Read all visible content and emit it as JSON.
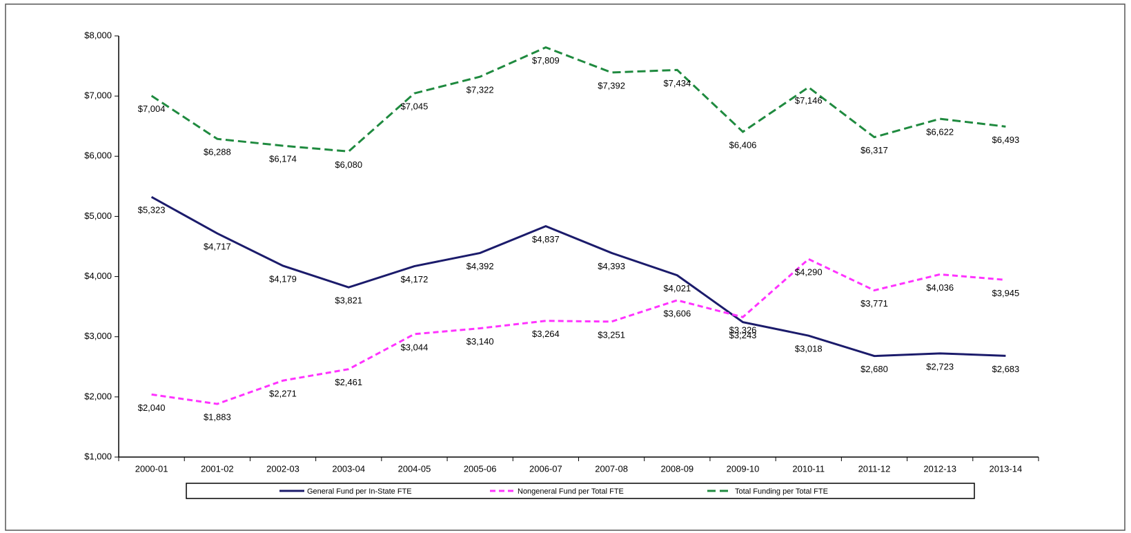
{
  "chart_data": {
    "type": "line",
    "categories": [
      "2000-01",
      "2001-02",
      "2002-03",
      "2003-04",
      "2004-05",
      "2005-06",
      "2006-07",
      "2007-08",
      "2008-09",
      "2009-10",
      "2010-11",
      "2011-12",
      "2012-13",
      "2013-14"
    ],
    "ylim": [
      1000,
      8000
    ],
    "yticks": [
      {
        "value": 1000,
        "label": "$1,000"
      },
      {
        "value": 2000,
        "label": "$2,000"
      },
      {
        "value": 3000,
        "label": "$3,000"
      },
      {
        "value": 4000,
        "label": "$4,000"
      },
      {
        "value": 5000,
        "label": "$5,000"
      },
      {
        "value": 6000,
        "label": "$6,000"
      },
      {
        "value": 7000,
        "label": "$7,000"
      },
      {
        "value": 8000,
        "label": "$8,000"
      }
    ],
    "grid": false,
    "legend": "bottom",
    "series": [
      {
        "name": "General Fund per In-State FTE",
        "color": "#1b1b6b",
        "dash": "none",
        "values": [
          5323,
          4717,
          4179,
          3821,
          4172,
          4392,
          4837,
          4393,
          4021,
          3243,
          3018,
          2680,
          2723,
          2683
        ],
        "value_labels": [
          "$5,323",
          "$4,717",
          "$4,179",
          "$3,821",
          "$4,172",
          "$4,392",
          "$4,837",
          "$4,393",
          "$4,021",
          "$3,243",
          "$3,018",
          "$2,680",
          "$2,723",
          "$2,683"
        ]
      },
      {
        "name": "Nongeneral Fund per Total FTE",
        "color": "#ff33ff",
        "dash": "8 5",
        "values": [
          2040,
          1883,
          2271,
          2461,
          3044,
          3140,
          3264,
          3251,
          3606,
          3326,
          4290,
          3771,
          4036,
          3945
        ],
        "value_labels": [
          "$2,040",
          "$1,883",
          "$2,271",
          "$2,461",
          "$3,044",
          "$3,140",
          "$3,264",
          "$3,251",
          "$3,606",
          "$3,326",
          "$4,290",
          "$3,771",
          "$4,036",
          "$3,945"
        ]
      },
      {
        "name": "Total Funding per Total FTE",
        "color": "#1f8a3f",
        "dash": "12 6",
        "values": [
          7004,
          6288,
          6174,
          6080,
          7045,
          7322,
          7809,
          7392,
          7434,
          6406,
          7146,
          6317,
          6622,
          6493
        ],
        "value_labels": [
          "$7,004",
          "$6,288",
          "$6,174",
          "$6,080",
          "$7,045",
          "$7,322",
          "$7,809",
          "$7,392",
          "$7,434",
          "$6,406",
          "$7,146",
          "$6,317",
          "$6,622",
          "$6,493"
        ]
      }
    ]
  }
}
